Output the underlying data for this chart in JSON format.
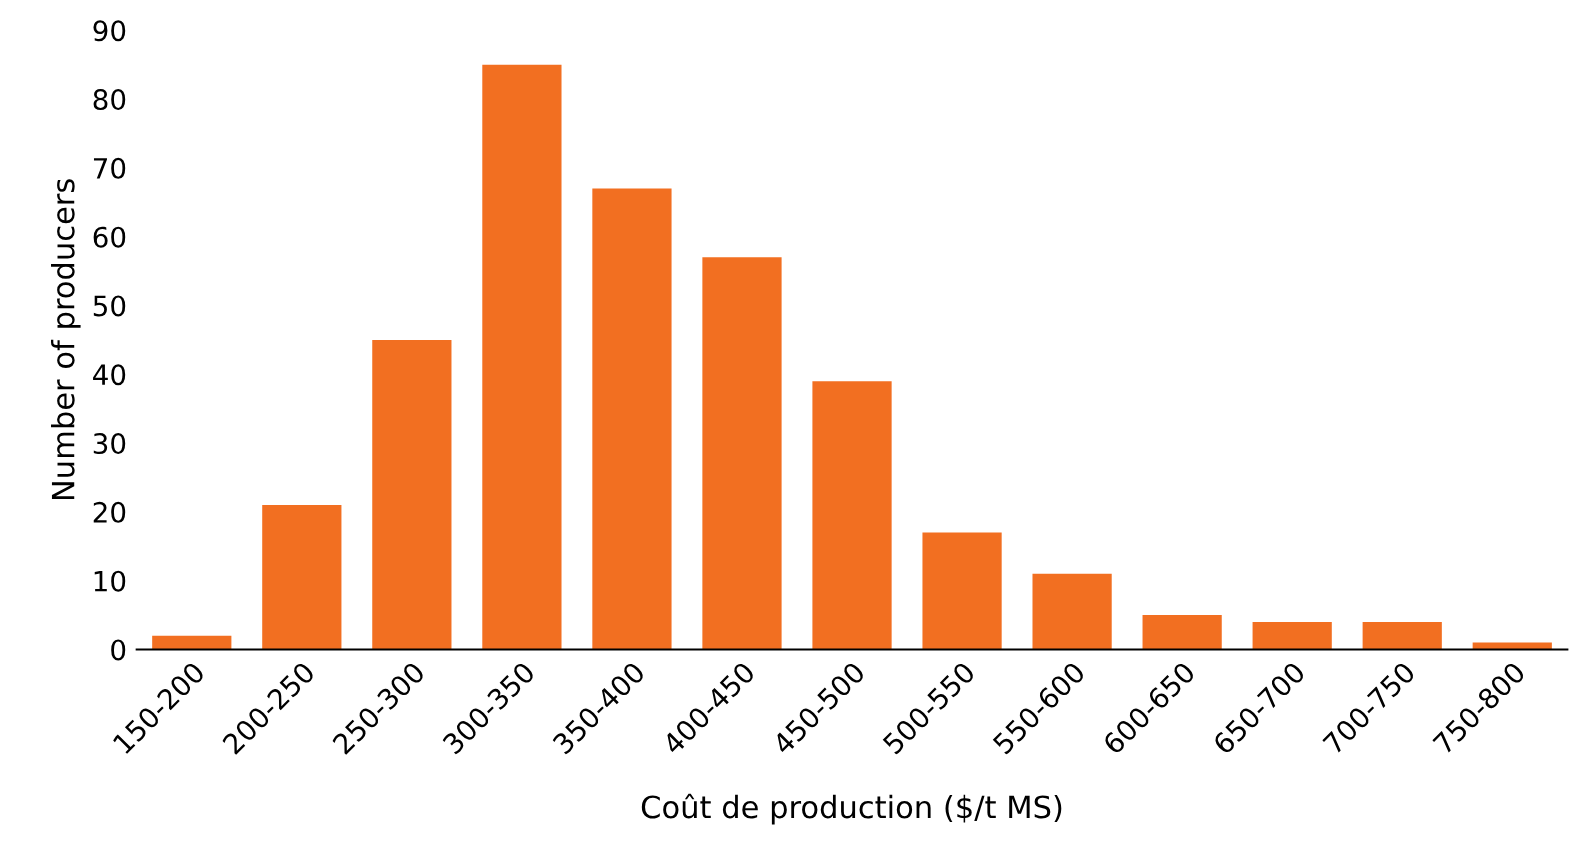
{
  "chart_data": {
    "type": "bar",
    "xlabel": "Coût de production ($/t MS)",
    "ylabel": "Number of producers",
    "categories": [
      "150-200",
      "200-250",
      "250-300",
      "300-350",
      "350-400",
      "400-450",
      "450-500",
      "500-550",
      "550-600",
      "600-650",
      "650-700",
      "700-750",
      "750-800"
    ],
    "values": [
      2,
      21,
      45,
      85,
      67,
      57,
      39,
      17,
      11,
      5,
      4,
      4,
      1
    ],
    "color": "#f26f21",
    "ylim": [
      0,
      90
    ],
    "yticks": [
      0,
      10,
      20,
      30,
      40,
      50,
      60,
      70,
      80,
      90
    ],
    "grid": false,
    "legend": false
  }
}
